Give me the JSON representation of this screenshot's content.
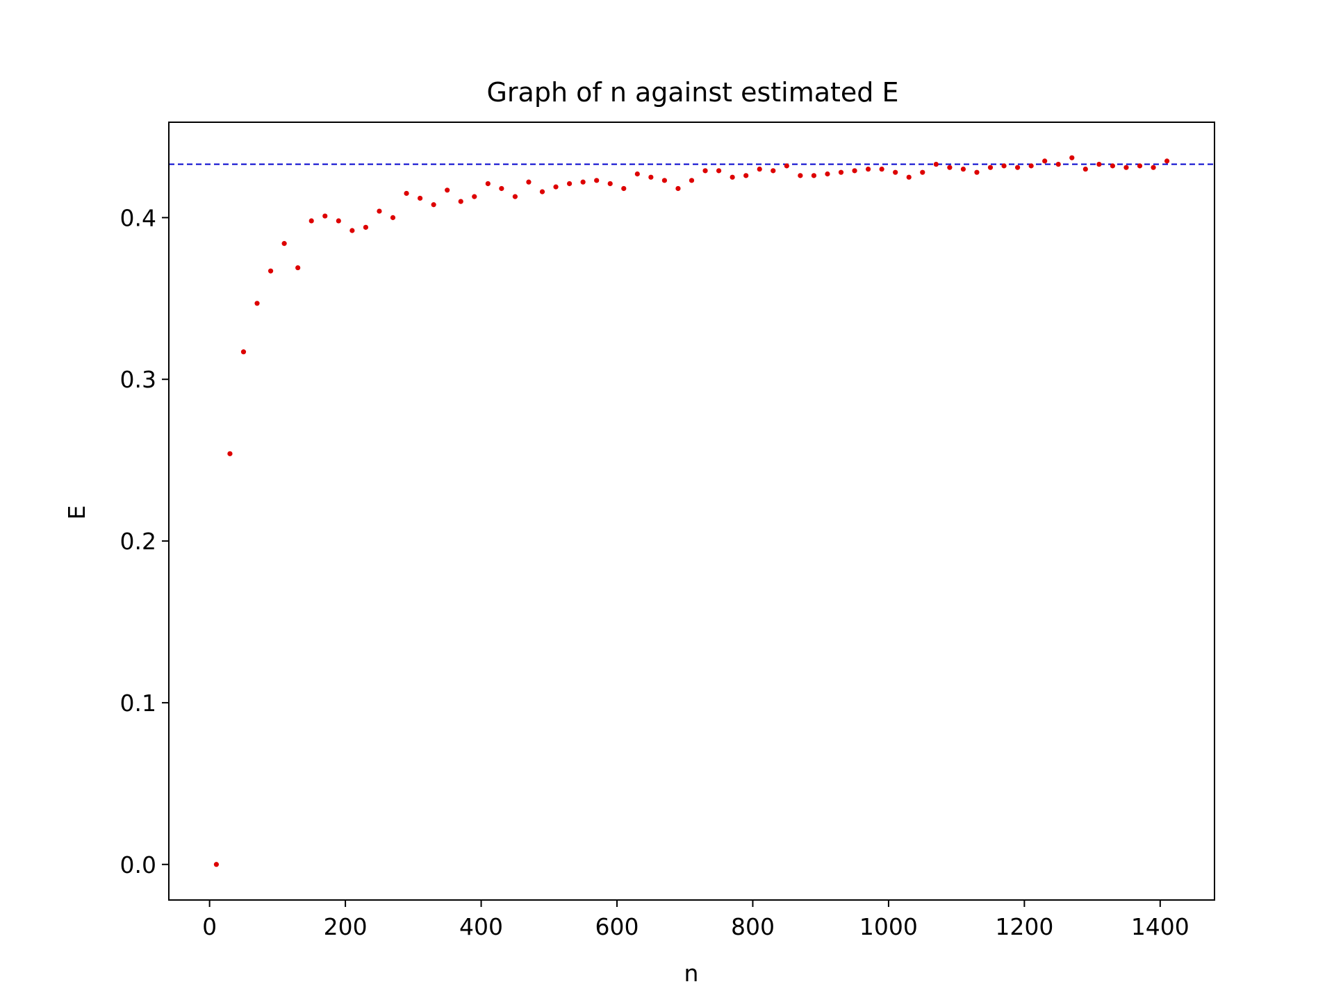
{
  "chart_data": {
    "type": "scatter",
    "title": "Graph of n against estimated E",
    "xlabel": "n",
    "ylabel": "E",
    "xlim": [
      -60,
      1480
    ],
    "ylim": [
      -0.022,
      0.459
    ],
    "xticks": [
      0,
      200,
      400,
      600,
      800,
      1000,
      1200,
      1400
    ],
    "xtick_labels": [
      "0",
      "200",
      "400",
      "600",
      "800",
      "1000",
      "1200",
      "1400"
    ],
    "yticks": [
      0.0,
      0.1,
      0.2,
      0.3,
      0.4
    ],
    "ytick_labels": [
      "0.0",
      "0.1",
      "0.2",
      "0.3",
      "0.4"
    ],
    "grid": false,
    "reference_line": {
      "y": 0.433,
      "style": "dashed",
      "color": "#0000cc"
    },
    "series": [
      {
        "color": "#dd0000",
        "x": [
          10,
          30,
          50,
          70,
          90,
          110,
          130,
          150,
          170,
          190,
          210,
          230,
          250,
          270,
          290,
          310,
          330,
          350,
          370,
          390,
          410,
          430,
          450,
          470,
          490,
          510,
          530,
          550,
          570,
          590,
          610,
          630,
          650,
          670,
          690,
          710,
          730,
          750,
          770,
          790,
          810,
          830,
          850,
          870,
          890,
          910,
          930,
          950,
          970,
          990,
          1010,
          1030,
          1050,
          1070,
          1090,
          1110,
          1130,
          1150,
          1170,
          1190,
          1210,
          1230,
          1250,
          1270,
          1290,
          1310,
          1330,
          1350,
          1370,
          1390,
          1410
        ],
        "y": [
          0.0,
          0.254,
          0.317,
          0.347,
          0.367,
          0.384,
          0.369,
          0.398,
          0.401,
          0.398,
          0.392,
          0.394,
          0.404,
          0.4,
          0.415,
          0.412,
          0.408,
          0.417,
          0.41,
          0.413,
          0.421,
          0.418,
          0.413,
          0.422,
          0.416,
          0.419,
          0.421,
          0.422,
          0.423,
          0.421,
          0.418,
          0.427,
          0.425,
          0.423,
          0.418,
          0.423,
          0.429,
          0.429,
          0.425,
          0.426,
          0.43,
          0.429,
          0.432,
          0.426,
          0.426,
          0.427,
          0.428,
          0.429,
          0.43,
          0.43,
          0.428,
          0.425,
          0.428,
          0.433,
          0.431,
          0.43,
          0.428,
          0.431,
          0.432,
          0.431,
          0.432,
          0.435,
          0.433,
          0.437,
          0.43,
          0.433,
          0.432,
          0.431,
          0.432,
          0.431,
          0.435
        ]
      }
    ]
  }
}
